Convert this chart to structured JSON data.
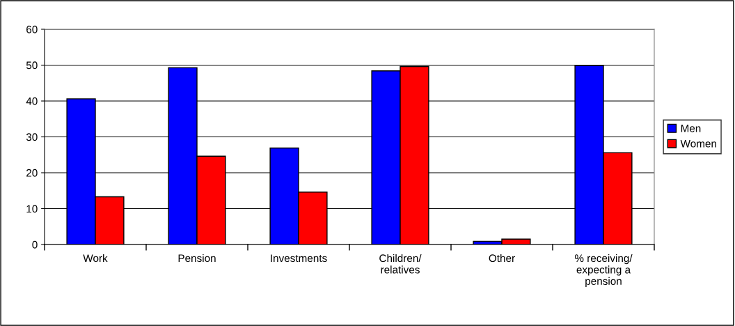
{
  "chart_data": {
    "type": "bar",
    "categories": [
      "Work",
      "Pension",
      "Investments",
      "Children/\nrelatives",
      "Other",
      "% receiving/\nexpecting a\npension"
    ],
    "series": [
      {
        "name": "Men",
        "color": "#0000ff",
        "values": [
          40.6,
          49.3,
          26.9,
          48.4,
          0.9,
          49.9
        ]
      },
      {
        "name": "Women",
        "color": "#ff0000",
        "values": [
          13.3,
          24.6,
          14.6,
          49.6,
          1.5,
          25.6
        ]
      }
    ],
    "ylim": [
      0,
      60
    ],
    "yticks": [
      0,
      10,
      20,
      30,
      40,
      50,
      60
    ],
    "grid": "y",
    "legend": "right"
  }
}
